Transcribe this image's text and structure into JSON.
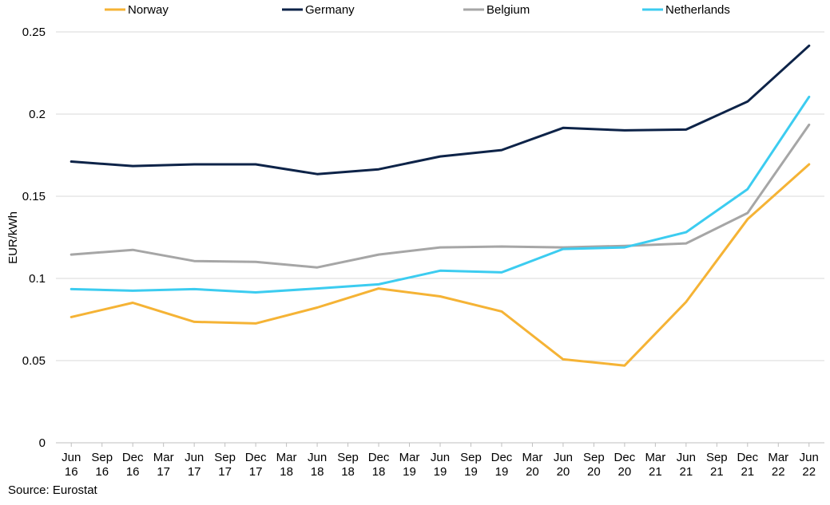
{
  "chart_data": {
    "type": "line",
    "title": "",
    "xlabel": "",
    "ylabel": "EUR/kWh",
    "ylim": [
      0,
      0.25
    ],
    "yticks": [
      "0",
      "0.05",
      "0.1",
      "0.15",
      "0.2",
      "0.25"
    ],
    "grid": true,
    "legend_position": "top",
    "categories": [
      [
        "Jun",
        "16"
      ],
      [
        "Sep",
        "16"
      ],
      [
        "Dec",
        "16"
      ],
      [
        "Mar",
        "17"
      ],
      [
        "Jun",
        "17"
      ],
      [
        "Sep",
        "17"
      ],
      [
        "Dec",
        "17"
      ],
      [
        "Mar",
        "18"
      ],
      [
        "Jun",
        "18"
      ],
      [
        "Sep",
        "18"
      ],
      [
        "Dec",
        "18"
      ],
      [
        "Mar",
        "19"
      ],
      [
        "Jun",
        "19"
      ],
      [
        "Sep",
        "19"
      ],
      [
        "Dec",
        "19"
      ],
      [
        "Mar",
        "20"
      ],
      [
        "Jun",
        "20"
      ],
      [
        "Sep",
        "20"
      ],
      [
        "Dec",
        "20"
      ],
      [
        "Mar",
        "21"
      ],
      [
        "Jun",
        "21"
      ],
      [
        "Sep",
        "21"
      ],
      [
        "Dec",
        "21"
      ],
      [
        "Mar",
        "22"
      ],
      [
        "Jun",
        "22"
      ]
    ],
    "series": [
      {
        "name": "Norway",
        "color": "#F5B335",
        "points": [
          [
            "Jun 16",
            0.0765
          ],
          [
            "Dec 16",
            0.0852
          ],
          [
            "Jun 17",
            0.0736
          ],
          [
            "Dec 17",
            0.0726
          ],
          [
            "Jun 18",
            0.0823
          ],
          [
            "Dec 18",
            0.0939
          ],
          [
            "Jun 19",
            0.0891
          ],
          [
            "Dec 19",
            0.0799
          ],
          [
            "Jun 20",
            0.0508
          ],
          [
            "Dec 20",
            0.047
          ],
          [
            "Jun 21",
            0.0857
          ],
          [
            "Dec 21",
            0.136
          ],
          [
            "Jun 22",
            0.1694
          ]
        ]
      },
      {
        "name": "Germany",
        "color": "#0D2348",
        "points": [
          [
            "Jun 16",
            0.1711
          ],
          [
            "Dec 16",
            0.1684
          ],
          [
            "Jun 17",
            0.1694
          ],
          [
            "Dec 17",
            0.1694
          ],
          [
            "Jun 18",
            0.1635
          ],
          [
            "Dec 18",
            0.1664
          ],
          [
            "Jun 19",
            0.1742
          ],
          [
            "Dec 19",
            0.1781
          ],
          [
            "Jun 20",
            0.1916
          ],
          [
            "Dec 20",
            0.1901
          ],
          [
            "Jun 21",
            0.1906
          ],
          [
            "Dec 21",
            0.2076
          ],
          [
            "Jun 22",
            0.2416
          ]
        ]
      },
      {
        "name": "Belgium",
        "color": "#A6A6A6",
        "points": [
          [
            "Jun 16",
            0.1145
          ],
          [
            "Dec 16",
            0.1174
          ],
          [
            "Jun 17",
            0.1106
          ],
          [
            "Dec 17",
            0.1101
          ],
          [
            "Jun 18",
            0.1067
          ],
          [
            "Dec 18",
            0.1145
          ],
          [
            "Jun 19",
            0.1189
          ],
          [
            "Dec 19",
            0.1194
          ],
          [
            "Jun 20",
            0.1189
          ],
          [
            "Dec 20",
            0.1198
          ],
          [
            "Jun 21",
            0.1213
          ],
          [
            "Dec 21",
            0.1398
          ],
          [
            "Jun 22",
            0.1935
          ]
        ]
      },
      {
        "name": "Netherlands",
        "color": "#3CCCF0",
        "points": [
          [
            "Jun 16",
            0.0935
          ],
          [
            "Dec 16",
            0.0925
          ],
          [
            "Jun 17",
            0.0935
          ],
          [
            "Dec 17",
            0.0915
          ],
          [
            "Jun 18",
            0.0939
          ],
          [
            "Dec 18",
            0.0964
          ],
          [
            "Jun 19",
            0.1047
          ],
          [
            "Dec 19",
            0.1037
          ],
          [
            "Jun 20",
            0.1179
          ],
          [
            "Dec 20",
            0.1189
          ],
          [
            "Jun 21",
            0.1281
          ],
          [
            "Dec 21",
            0.1543
          ],
          [
            "Jun 22",
            0.2105
          ]
        ]
      }
    ]
  },
  "source_text": "Source: Eurostat"
}
